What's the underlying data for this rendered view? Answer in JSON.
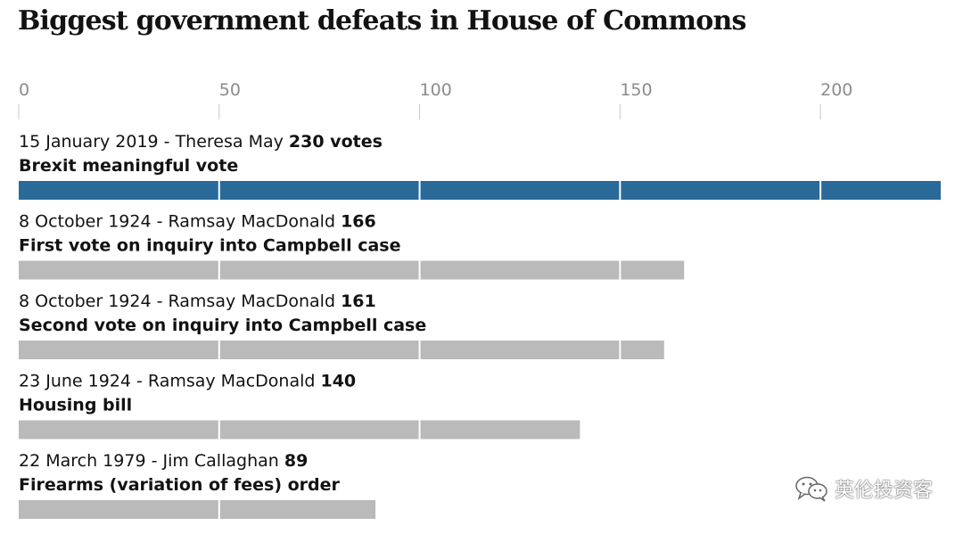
{
  "chart_data": {
    "type": "bar",
    "orientation": "horizontal",
    "title": "Biggest government defeats in House of Commons",
    "xlim": [
      0,
      230
    ],
    "xticks": [
      0,
      50,
      100,
      150,
      200
    ],
    "grid": false,
    "highlight_color": "#2a6a99",
    "bar_color": "#bababa",
    "bars": [
      {
        "date_pm": "15 January 2019 - Theresa May",
        "value_label": "230 votes",
        "value": 230,
        "description": "Brexit meaningful vote",
        "highlight": true
      },
      {
        "date_pm": "8 October 1924 - Ramsay MacDonald",
        "value_label": "166",
        "value": 166,
        "description": "First vote on inquiry into Campbell case",
        "highlight": false
      },
      {
        "date_pm": "8 October 1924 - Ramsay MacDonald",
        "value_label": "161",
        "value": 161,
        "description": "Second vote on inquiry into Campbell case",
        "highlight": false
      },
      {
        "date_pm": "23 June 1924 - Ramsay MacDonald",
        "value_label": "140",
        "value": 140,
        "description": "Housing bill",
        "highlight": false
      },
      {
        "date_pm": "22 March 1979 - Jim Callaghan",
        "value_label": "89",
        "value": 89,
        "description": "Firearms (variation of fees) order",
        "highlight": false
      }
    ]
  },
  "watermark": {
    "text": "英伦投资客",
    "icon": "wechat-icon"
  }
}
